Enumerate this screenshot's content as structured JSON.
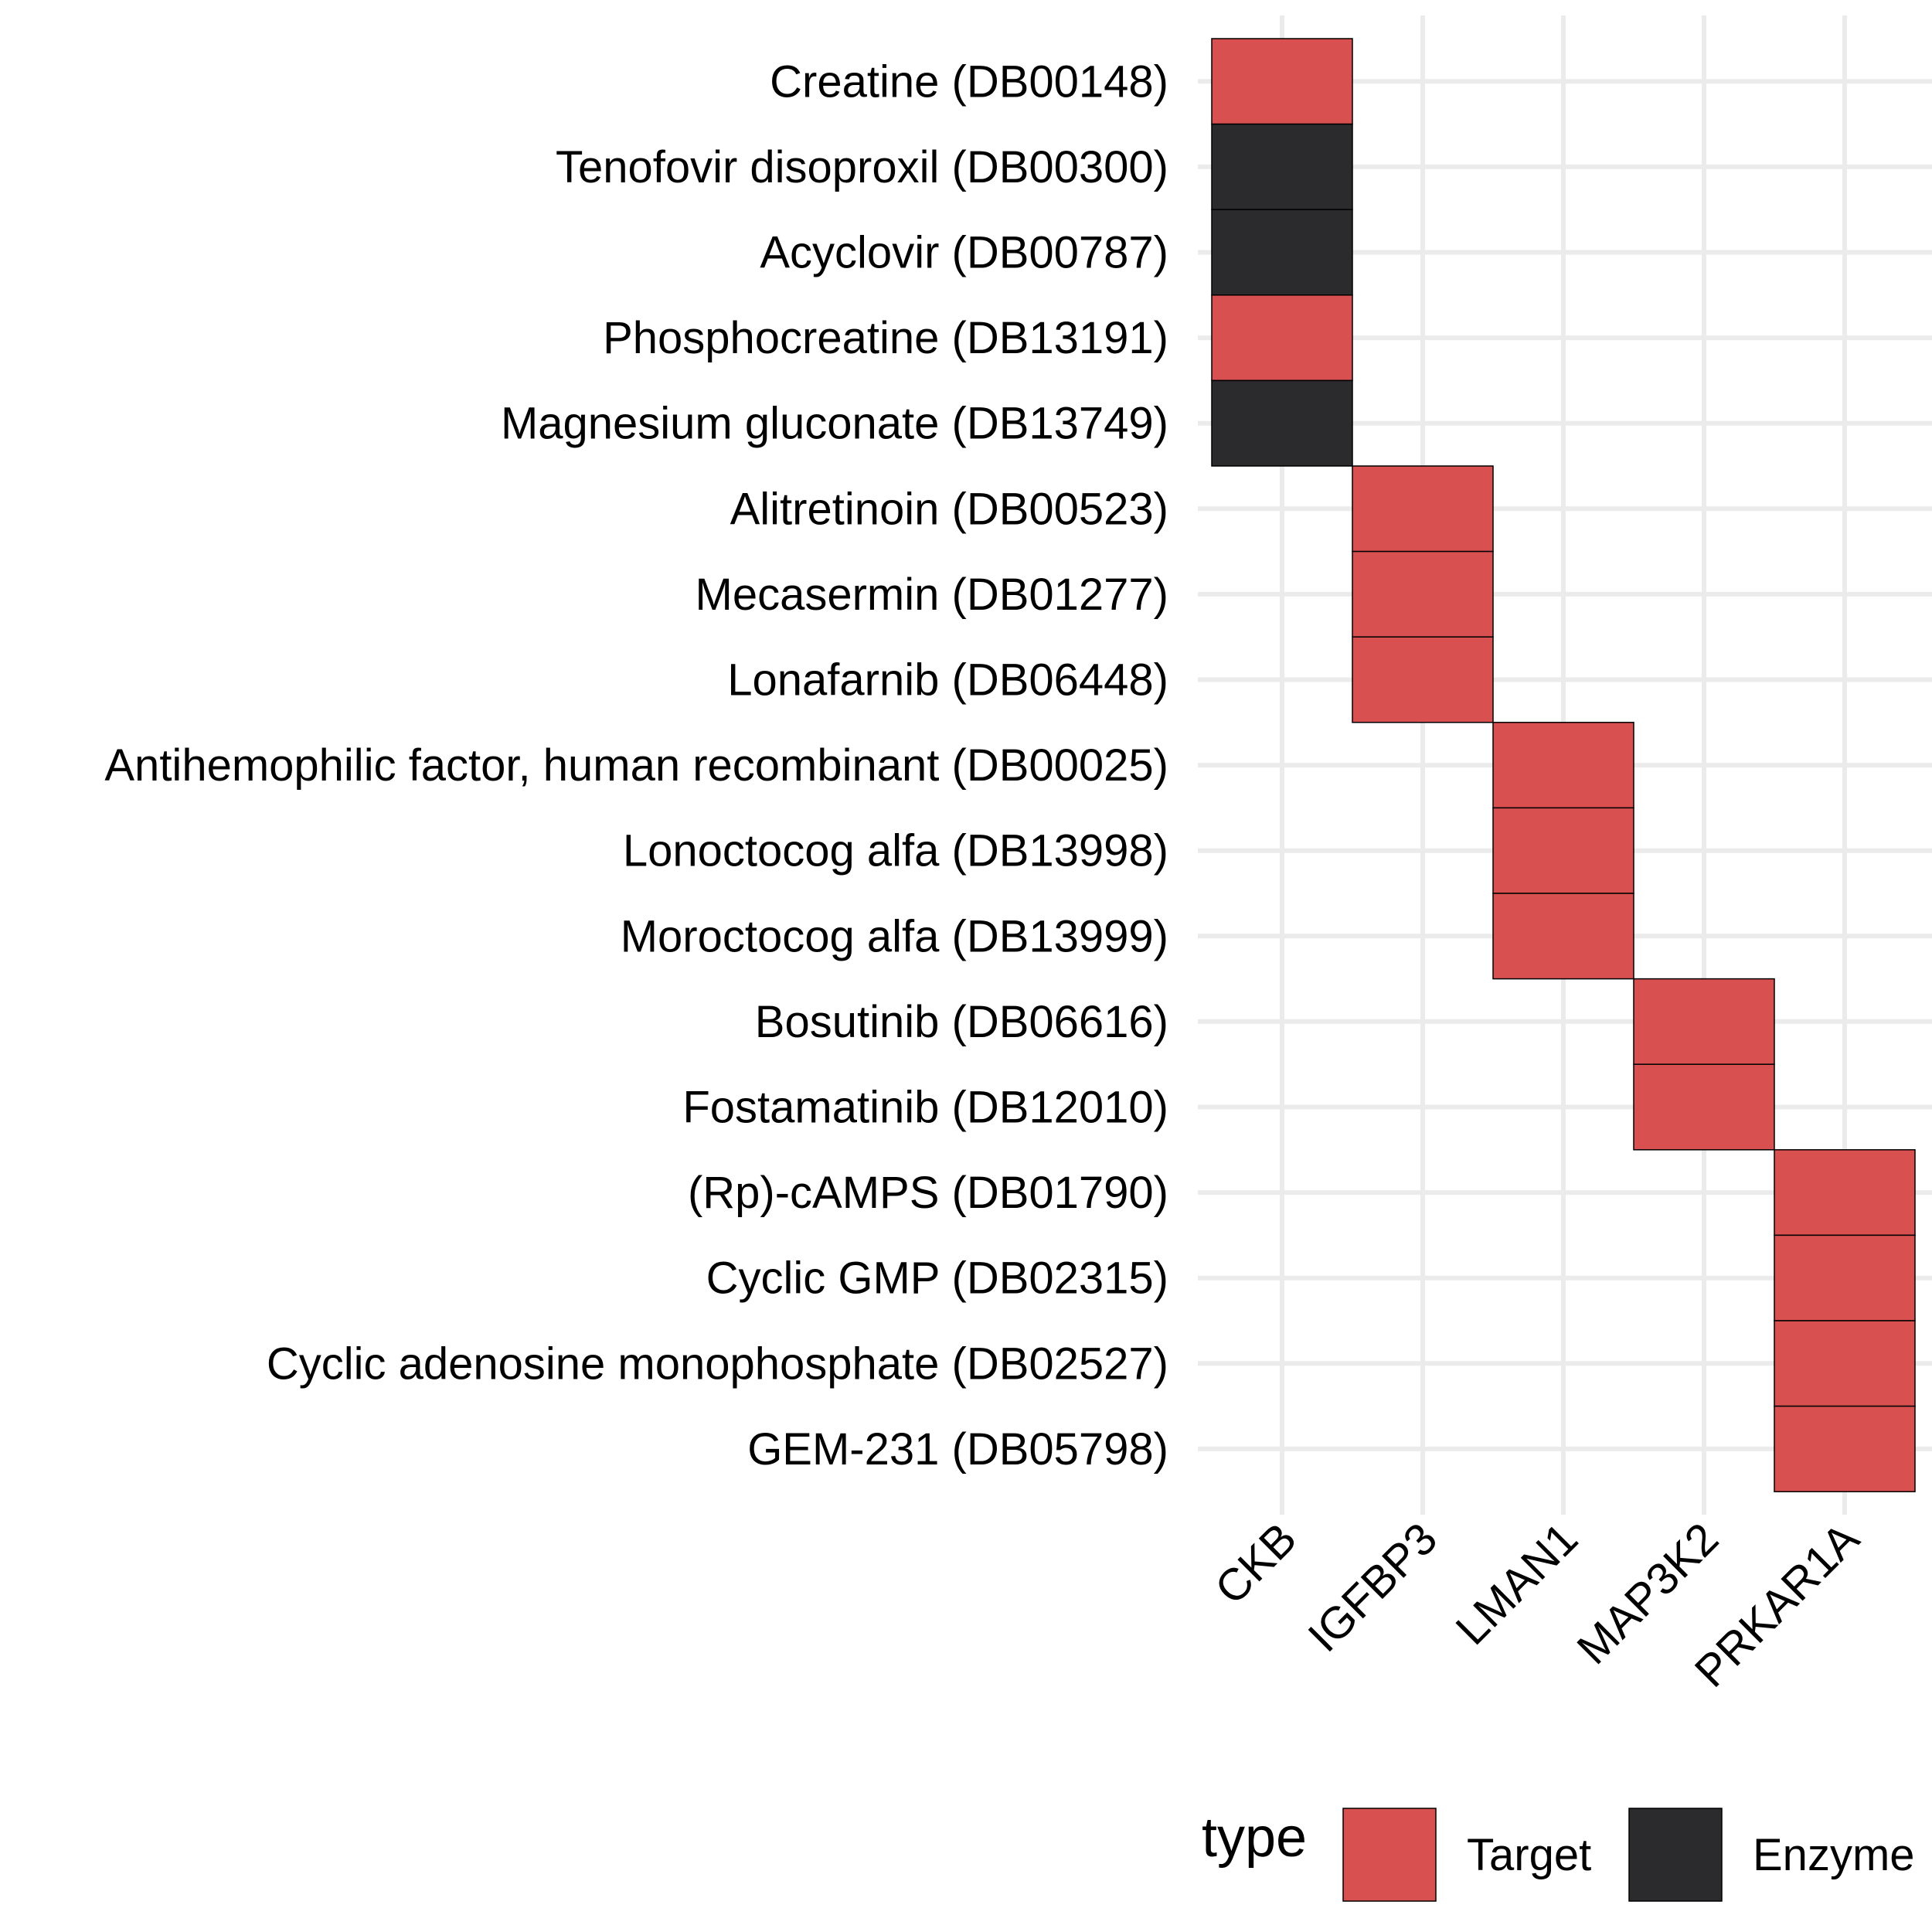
{
  "chart_data": {
    "type": "heatmap",
    "x_categories": [
      "CKB",
      "IGFBP3",
      "LMAN1",
      "MAP3K2",
      "PRKAR1A"
    ],
    "y_categories": [
      "Creatine (DB00148)",
      "Tenofovir disoproxil (DB00300)",
      "Acyclovir (DB00787)",
      "Phosphocreatine (DB13191)",
      "Magnesium gluconate (DB13749)",
      "Alitretinoin (DB00523)",
      "Mecasermin (DB01277)",
      "Lonafarnib (DB06448)",
      "Antihemophilic factor, human recombinant (DB00025)",
      "Lonoctocog alfa (DB13998)",
      "Moroctocog alfa (DB13999)",
      "Bosutinib (DB06616)",
      "Fostamatinib (DB12010)",
      "(Rp)-cAMPS (DB01790)",
      "Cyclic GMP (DB02315)",
      "Cyclic adenosine monophosphate (DB02527)",
      "GEM-231 (DB05798)"
    ],
    "cells": [
      {
        "x": "CKB",
        "y": "Creatine (DB00148)",
        "type": "Target"
      },
      {
        "x": "CKB",
        "y": "Tenofovir disoproxil (DB00300)",
        "type": "Enzyme"
      },
      {
        "x": "CKB",
        "y": "Acyclovir (DB00787)",
        "type": "Enzyme"
      },
      {
        "x": "CKB",
        "y": "Phosphocreatine (DB13191)",
        "type": "Target"
      },
      {
        "x": "CKB",
        "y": "Magnesium gluconate (DB13749)",
        "type": "Enzyme"
      },
      {
        "x": "IGFBP3",
        "y": "Alitretinoin (DB00523)",
        "type": "Target"
      },
      {
        "x": "IGFBP3",
        "y": "Mecasermin (DB01277)",
        "type": "Target"
      },
      {
        "x": "IGFBP3",
        "y": "Lonafarnib (DB06448)",
        "type": "Target"
      },
      {
        "x": "LMAN1",
        "y": "Antihemophilic factor, human recombinant (DB00025)",
        "type": "Target"
      },
      {
        "x": "LMAN1",
        "y": "Lonoctocog alfa (DB13998)",
        "type": "Target"
      },
      {
        "x": "LMAN1",
        "y": "Moroctocog alfa (DB13999)",
        "type": "Target"
      },
      {
        "x": "MAP3K2",
        "y": "Bosutinib (DB06616)",
        "type": "Target"
      },
      {
        "x": "MAP3K2",
        "y": "Fostamatinib (DB12010)",
        "type": "Target"
      },
      {
        "x": "PRKAR1A",
        "y": "(Rp)-cAMPS (DB01790)",
        "type": "Target"
      },
      {
        "x": "PRKAR1A",
        "y": "Cyclic GMP (DB02315)",
        "type": "Target"
      },
      {
        "x": "PRKAR1A",
        "y": "Cyclic adenosine monophosphate (DB02527)",
        "type": "Target"
      },
      {
        "x": "PRKAR1A",
        "y": "GEM-231 (DB05798)",
        "type": "Target"
      }
    ],
    "legend": {
      "title": "type",
      "position": "bottom",
      "items": [
        {
          "label": "Target",
          "color": "#d95050"
        },
        {
          "label": "Enzyme",
          "color": "#2b2b2d"
        }
      ]
    },
    "grid": true
  }
}
